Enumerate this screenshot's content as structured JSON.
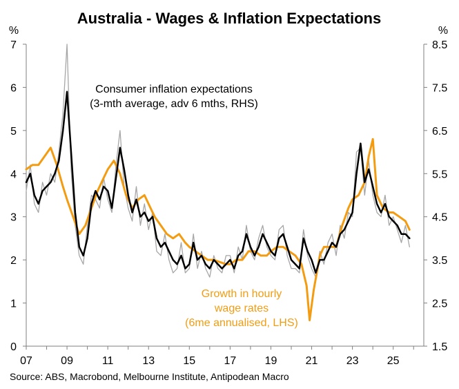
{
  "chart_data": {
    "type": "line",
    "title": "Australia - Wages & Inflation Expectations",
    "source": "Source: ABS, Macrobond, Melbourne Institute, Antipodean Macro",
    "left_axis": {
      "unit": "%",
      "ylim": [
        0,
        7
      ],
      "ticks": [
        "0",
        "1",
        "2",
        "3",
        "4",
        "5",
        "6",
        "7"
      ]
    },
    "right_axis": {
      "unit": "%",
      "ylim": [
        1.5,
        8.5
      ],
      "ticks": [
        "1.5",
        "2.5",
        "3.5",
        "4.5",
        "5.5",
        "6.5",
        "7.5",
        "8.5"
      ]
    },
    "x_axis": {
      "xlim": [
        2007,
        2026.5
      ],
      "ticks": [
        "07",
        "09",
        "11",
        "13",
        "15",
        "17",
        "19",
        "21",
        "23",
        "25"
      ],
      "tick_years": [
        2007,
        2009,
        2011,
        2013,
        2015,
        2017,
        2019,
        2021,
        2023,
        2025
      ]
    },
    "annotations": {
      "expectations": [
        "Consumer inflation expectations",
        "(3-mth average, adv 6 mths, RHS)"
      ],
      "wages": [
        "Growth in hourly",
        "wage rates",
        "(6me annualised, LHS)"
      ]
    },
    "colors": {
      "wages": "#F39C12",
      "expectations": "#000000",
      "expectations_monthly": "#A6A6A6"
    },
    "series": [
      {
        "name": "Growth in hourly wage rates (6me annualised, LHS)",
        "axis": "left",
        "color": "#F39C12",
        "x": [
          2007.0,
          2007.3,
          2007.6,
          2007.9,
          2008.2,
          2008.5,
          2008.8,
          2009.0,
          2009.3,
          2009.6,
          2009.9,
          2010.2,
          2010.5,
          2010.8,
          2011.0,
          2011.3,
          2011.6,
          2011.9,
          2012.2,
          2012.5,
          2012.8,
          2013.0,
          2013.3,
          2013.6,
          2013.9,
          2014.2,
          2014.5,
          2014.8,
          2015.0,
          2015.3,
          2015.6,
          2015.9,
          2016.2,
          2016.5,
          2016.8,
          2017.0,
          2017.3,
          2017.6,
          2017.9,
          2018.2,
          2018.5,
          2018.8,
          2019.0,
          2019.3,
          2019.6,
          2019.9,
          2020.2,
          2020.5,
          2020.75,
          2020.9,
          2021.1,
          2021.4,
          2021.6,
          2021.9,
          2022.2,
          2022.5,
          2022.8,
          2023.0,
          2023.3,
          2023.6,
          2023.8,
          2024.0,
          2024.2,
          2024.5,
          2024.8,
          2025.0,
          2025.3,
          2025.6,
          2025.8
        ],
        "values": [
          4.1,
          4.2,
          4.2,
          4.4,
          4.6,
          4.2,
          3.7,
          3.4,
          3.0,
          2.6,
          2.8,
          3.2,
          3.6,
          3.9,
          4.1,
          4.3,
          4.0,
          3.5,
          3.2,
          3.4,
          3.5,
          3.3,
          3.0,
          2.8,
          2.6,
          2.5,
          2.6,
          2.4,
          2.3,
          2.2,
          2.1,
          2.0,
          2.0,
          1.95,
          1.9,
          1.9,
          2.0,
          2.0,
          2.2,
          2.2,
          2.1,
          2.1,
          2.2,
          2.3,
          2.3,
          2.2,
          2.1,
          1.9,
          1.4,
          0.6,
          1.3,
          2.1,
          2.3,
          2.3,
          2.3,
          2.8,
          3.2,
          3.4,
          3.5,
          3.8,
          4.4,
          4.8,
          3.5,
          3.2,
          3.1,
          3.1,
          3.0,
          2.9,
          2.7
        ]
      },
      {
        "name": "Consumer inflation expectations (3-mth average, adv 6 mths, RHS)",
        "axis": "right",
        "color": "#000000",
        "x": [
          2007.0,
          2007.2,
          2007.4,
          2007.6,
          2007.8,
          2008.0,
          2008.2,
          2008.4,
          2008.6,
          2008.8,
          2009.0,
          2009.2,
          2009.4,
          2009.6,
          2009.8,
          2010.0,
          2010.2,
          2010.4,
          2010.6,
          2010.8,
          2011.0,
          2011.2,
          2011.4,
          2011.6,
          2011.8,
          2012.0,
          2012.2,
          2012.4,
          2012.6,
          2012.8,
          2013.0,
          2013.2,
          2013.4,
          2013.6,
          2013.8,
          2014.0,
          2014.2,
          2014.4,
          2014.6,
          2014.8,
          2015.0,
          2015.2,
          2015.4,
          2015.6,
          2015.8,
          2016.0,
          2016.2,
          2016.4,
          2016.6,
          2016.8,
          2017.0,
          2017.2,
          2017.4,
          2017.6,
          2017.8,
          2018.0,
          2018.2,
          2018.4,
          2018.6,
          2018.8,
          2019.0,
          2019.2,
          2019.4,
          2019.6,
          2019.8,
          2020.0,
          2020.2,
          2020.4,
          2020.6,
          2020.8,
          2021.0,
          2021.2,
          2021.4,
          2021.6,
          2021.8,
          2022.0,
          2022.2,
          2022.4,
          2022.6,
          2022.8,
          2023.0,
          2023.2,
          2023.4,
          2023.6,
          2023.8,
          2024.0,
          2024.2,
          2024.4,
          2024.6,
          2024.8,
          2025.0,
          2025.2,
          2025.4,
          2025.6,
          2025.8
        ],
        "values": [
          5.3,
          5.5,
          5.0,
          4.8,
          5.1,
          5.2,
          5.3,
          5.5,
          5.8,
          6.5,
          7.4,
          6.0,
          4.6,
          3.8,
          3.6,
          4.0,
          4.8,
          5.1,
          4.9,
          5.2,
          5.1,
          4.7,
          5.4,
          6.1,
          5.6,
          5.0,
          4.6,
          4.9,
          4.5,
          4.6,
          4.4,
          4.5,
          4.0,
          3.8,
          3.9,
          3.7,
          3.5,
          3.4,
          3.6,
          3.3,
          3.4,
          3.9,
          3.5,
          3.6,
          3.4,
          3.3,
          3.5,
          3.4,
          3.3,
          3.4,
          3.5,
          3.3,
          3.6,
          3.7,
          4.1,
          3.8,
          3.6,
          3.8,
          4.1,
          3.9,
          3.7,
          3.6,
          4.0,
          4.1,
          3.8,
          3.5,
          3.4,
          3.3,
          4.0,
          3.7,
          3.5,
          3.2,
          3.5,
          3.5,
          3.7,
          3.9,
          3.8,
          4.1,
          4.2,
          4.4,
          4.6,
          5.5,
          6.2,
          5.3,
          5.6,
          5.2,
          4.8,
          4.6,
          4.8,
          4.5,
          4.4,
          4.3,
          4.1,
          4.1,
          4.0
        ]
      },
      {
        "name": "Consumer inflation expectations (monthly)",
        "axis": "right",
        "color": "#A6A6A6",
        "x": [
          2007.0,
          2007.2,
          2007.4,
          2007.6,
          2007.8,
          2008.0,
          2008.2,
          2008.4,
          2008.6,
          2008.8,
          2009.0,
          2009.2,
          2009.4,
          2009.6,
          2009.8,
          2010.0,
          2010.2,
          2010.4,
          2010.6,
          2010.8,
          2011.0,
          2011.2,
          2011.4,
          2011.6,
          2011.8,
          2012.0,
          2012.2,
          2012.4,
          2012.6,
          2012.8,
          2013.0,
          2013.2,
          2013.4,
          2013.6,
          2013.8,
          2014.0,
          2014.2,
          2014.4,
          2014.6,
          2014.8,
          2015.0,
          2015.2,
          2015.4,
          2015.6,
          2015.8,
          2016.0,
          2016.2,
          2016.4,
          2016.6,
          2016.8,
          2017.0,
          2017.2,
          2017.4,
          2017.6,
          2017.8,
          2018.0,
          2018.2,
          2018.4,
          2018.6,
          2018.8,
          2019.0,
          2019.2,
          2019.4,
          2019.6,
          2019.8,
          2020.0,
          2020.2,
          2020.4,
          2020.6,
          2020.8,
          2021.0,
          2021.2,
          2021.4,
          2021.6,
          2021.8,
          2022.0,
          2022.2,
          2022.4,
          2022.6,
          2022.8,
          2023.0,
          2023.2,
          2023.4,
          2023.6,
          2023.8,
          2024.0,
          2024.2,
          2024.4,
          2024.6,
          2024.8,
          2025.0,
          2025.2,
          2025.4,
          2025.6,
          2025.8
        ],
        "values": [
          5.1,
          5.7,
          4.8,
          4.6,
          5.3,
          5.0,
          5.5,
          5.3,
          6.0,
          6.9,
          8.5,
          5.6,
          4.3,
          3.6,
          3.4,
          4.3,
          5.0,
          4.9,
          4.7,
          5.4,
          4.9,
          4.6,
          5.7,
          6.5,
          5.2,
          4.7,
          4.4,
          5.2,
          4.3,
          4.8,
          4.2,
          4.6,
          3.7,
          3.6,
          4.1,
          3.5,
          3.2,
          3.3,
          3.9,
          3.2,
          3.3,
          4.1,
          3.3,
          3.7,
          3.3,
          3.1,
          3.6,
          3.3,
          3.2,
          3.6,
          3.6,
          3.2,
          3.8,
          3.5,
          4.3,
          3.7,
          3.5,
          4.0,
          4.3,
          3.8,
          3.6,
          3.5,
          4.2,
          4.3,
          3.6,
          3.3,
          3.3,
          3.2,
          4.2,
          3.6,
          3.3,
          3.1,
          3.7,
          3.4,
          3.9,
          4.1,
          3.6,
          4.3,
          4.0,
          4.6,
          4.5,
          6.0,
          6.1,
          5.0,
          5.8,
          5.0,
          4.6,
          4.5,
          5.0,
          4.3,
          4.5,
          4.2,
          3.9,
          4.3,
          3.8
        ]
      }
    ]
  }
}
